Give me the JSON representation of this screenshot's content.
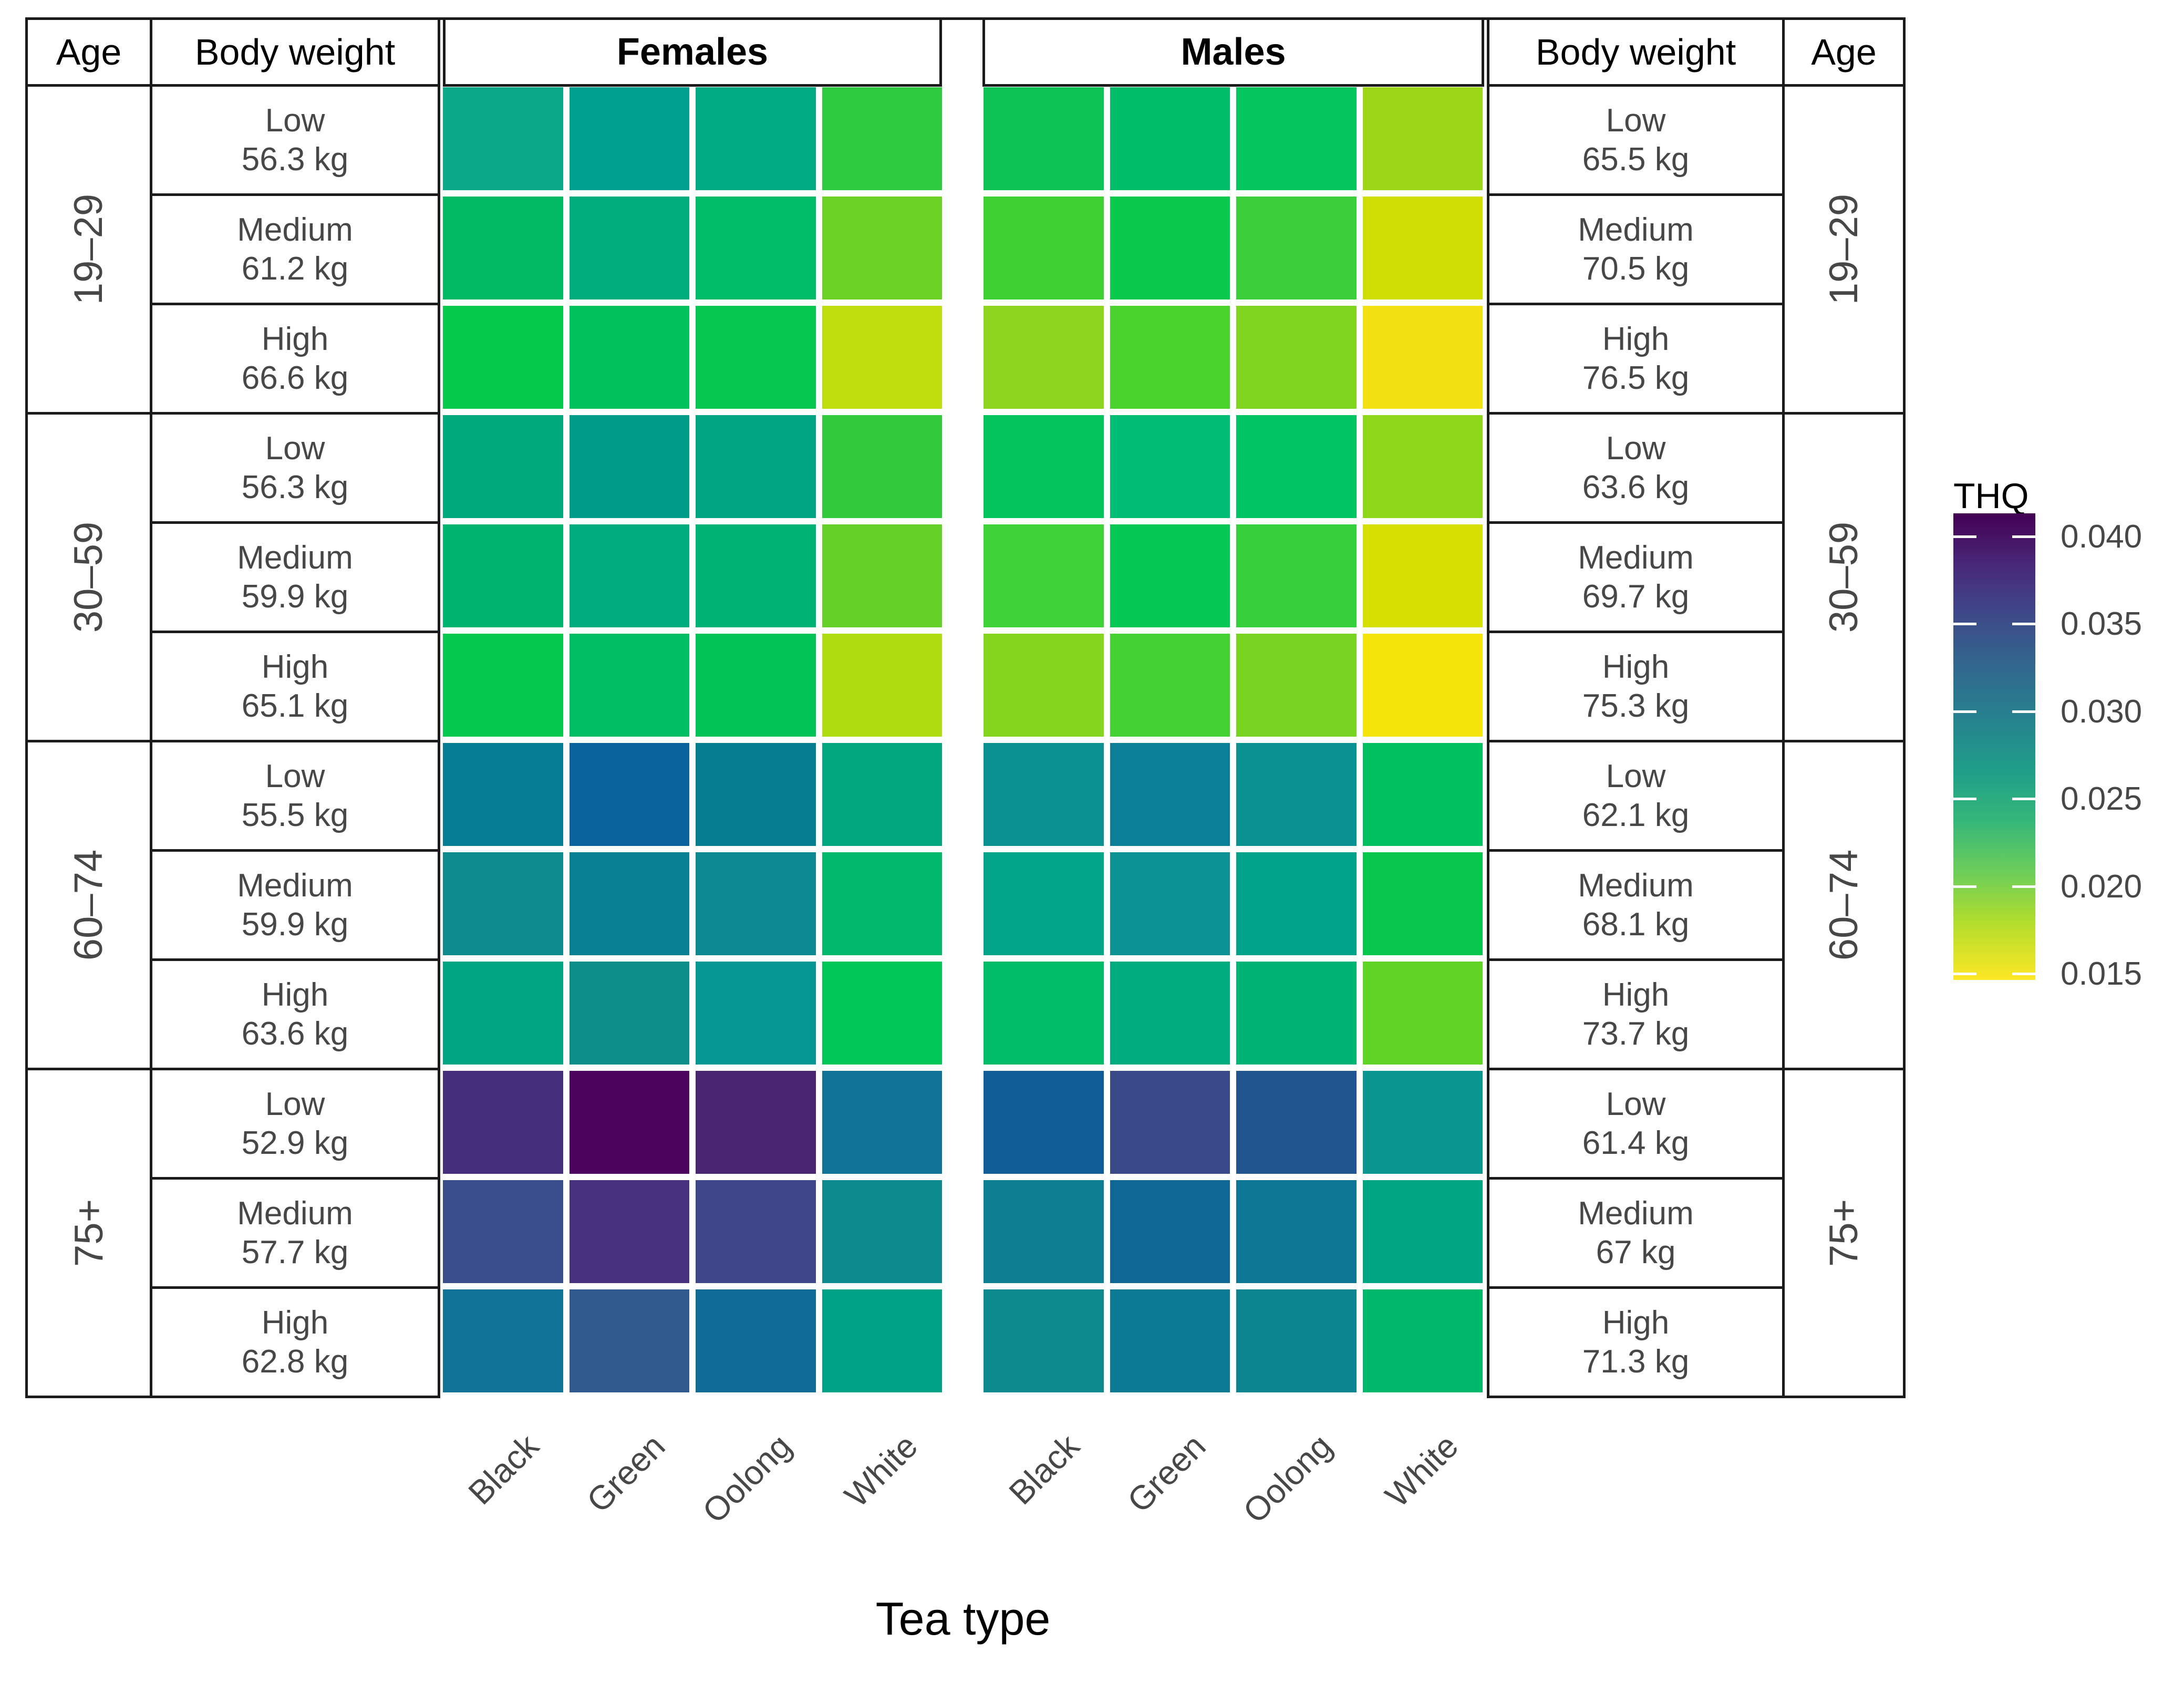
{
  "table": {
    "age_header": "Age",
    "weight_header": "Body weight",
    "female_header": "Females",
    "male_header": "Males"
  },
  "axis": {
    "x_title": "Tea type",
    "tick_labels": [
      "Black",
      "Green",
      "Oolong",
      "White"
    ]
  },
  "legend": {
    "title": "THQ",
    "tick_labels": [
      "0.040",
      "0.035",
      "0.030",
      "0.025",
      "0.020",
      "0.015"
    ]
  },
  "chart_data": {
    "type": "heatmap",
    "value_label": "THQ",
    "x_title": "Tea type",
    "columns": [
      "Black",
      "Green",
      "Oolong",
      "White"
    ],
    "facets": [
      "Females",
      "Males"
    ],
    "colormap": "viridis reversed (high THQ = dark purple, low THQ = yellow)",
    "color_domain": [
      0.0145,
      0.0415
    ],
    "legend_ticks": [
      0.04,
      0.035,
      0.03,
      0.025,
      0.02,
      0.015
    ],
    "age_groups": [
      "19–29",
      "30–59",
      "60–74",
      "75+"
    ],
    "rows": [
      {
        "age": "19–29",
        "level": "Low",
        "female_weight": "56.3 kg",
        "male_weight": "65.5 kg",
        "female": [
          0.026,
          0.028,
          0.026,
          0.022
        ],
        "male": [
          0.022,
          0.023,
          0.022,
          0.018
        ],
        "female_colors": [
          "#0aa988",
          "#00a090",
          "#00ab84",
          "#2fcb41"
        ],
        "male_colors": [
          "#0bc455",
          "#00bd69",
          "#04c65c",
          "#9bd717"
        ]
      },
      {
        "age": "19–29",
        "level": "Medium",
        "female_weight": "61.2 kg",
        "male_weight": "70.5 kg",
        "female": [
          0.024,
          0.025,
          0.023,
          0.019
        ],
        "male": [
          0.021,
          0.022,
          0.021,
          0.016
        ],
        "female_colors": [
          "#00bb64",
          "#00ad7c",
          "#00bc68",
          "#6cd125"
        ],
        "male_colors": [
          "#3fd133",
          "#0aca4e",
          "#3bd03a",
          "#cfdf04"
        ]
      },
      {
        "age": "19–29",
        "level": "High",
        "female_weight": "66.6 kg",
        "male_weight": "76.5 kg",
        "female": [
          0.022,
          0.023,
          0.022,
          0.017
        ],
        "male": [
          0.018,
          0.021,
          0.019,
          0.015
        ],
        "female_colors": [
          "#04c94b",
          "#00c25d",
          "#06c750",
          "#bddd0d"
        ],
        "male_colors": [
          "#8dd51c",
          "#4ad32c",
          "#7ed41f",
          "#f2e213"
        ]
      },
      {
        "age": "30–59",
        "level": "Low",
        "female_weight": "56.3 kg",
        "male_weight": "63.6 kg",
        "female": [
          0.026,
          0.028,
          0.026,
          0.022
        ],
        "male": [
          0.022,
          0.024,
          0.023,
          0.018
        ],
        "female_colors": [
          "#00a97b",
          "#009e8a",
          "#00a682",
          "#32cb3e"
        ],
        "male_colors": [
          "#01c45d",
          "#00bd74",
          "#00c364",
          "#8ed71b"
        ]
      },
      {
        "age": "30–59",
        "level": "Medium",
        "female_weight": "59.9 kg",
        "male_weight": "69.7 kg",
        "female": [
          0.025,
          0.026,
          0.025,
          0.02
        ],
        "male": [
          0.021,
          0.022,
          0.021,
          0.016
        ],
        "female_colors": [
          "#00b56f",
          "#00ac7d",
          "#00b573",
          "#65d028"
        ],
        "male_colors": [
          "#3ed237",
          "#04c853",
          "#36d03d",
          "#d5e002"
        ]
      },
      {
        "age": "30–59",
        "level": "High",
        "female_weight": "65.1 kg",
        "male_weight": "75.3 kg",
        "female": [
          0.022,
          0.023,
          0.022,
          0.018
        ],
        "male": [
          0.019,
          0.021,
          0.019,
          0.014
        ],
        "female_colors": [
          "#05c84f",
          "#00bd62",
          "#02c356",
          "#afdc11"
        ],
        "male_colors": [
          "#84d51e",
          "#43d231",
          "#77d422",
          "#f4e409"
        ]
      },
      {
        "age": "60–74",
        "level": "Low",
        "female_weight": "55.5 kg",
        "male_weight": "62.1 kg",
        "female": [
          0.033,
          0.035,
          0.033,
          0.026
        ],
        "male": [
          0.029,
          0.031,
          0.029,
          0.023
        ],
        "female_colors": [
          "#067d92",
          "#09629b",
          "#077d92",
          "#00a77f"
        ],
        "male_colors": [
          "#0b9290",
          "#0c8099",
          "#0a9191",
          "#00c060"
        ]
      },
      {
        "age": "60–74",
        "level": "Medium",
        "female_weight": "59.9 kg",
        "male_weight": "68.1 kg",
        "female": [
          0.03,
          0.032,
          0.03,
          0.024
        ],
        "male": [
          0.027,
          0.029,
          0.027,
          0.022
        ],
        "female_colors": [
          "#0d8b8d",
          "#0a8094",
          "#0c8890",
          "#00b96b"
        ],
        "male_colors": [
          "#00a687",
          "#0a9294",
          "#00a38a",
          "#08c74c"
        ]
      },
      {
        "age": "60–74",
        "level": "High",
        "female_weight": "63.6 kg",
        "male_weight": "73.7 kg",
        "female": [
          0.027,
          0.029,
          0.028,
          0.022
        ],
        "male": [
          0.024,
          0.026,
          0.025,
          0.02
        ],
        "female_colors": [
          "#00a584",
          "#0c8f8a",
          "#079894",
          "#00c557"
        ],
        "male_colors": [
          "#00bb67",
          "#00ac7d",
          "#00b573",
          "#60d327"
        ]
      },
      {
        "age": "75+",
        "level": "Low",
        "female_weight": "52.9 kg",
        "male_weight": "61.4 kg",
        "female": [
          0.039,
          0.042,
          0.04,
          0.034
        ],
        "male": [
          0.035,
          0.036,
          0.035,
          0.029
        ],
        "female_colors": [
          "#452f7b",
          "#4a045e",
          "#482471",
          "#0f7395"
        ],
        "male_colors": [
          "#115d97",
          "#3a4988",
          "#20558f",
          "#0a9590"
        ]
      },
      {
        "age": "75+",
        "level": "Medium",
        "female_weight": "57.7 kg",
        "male_weight": "67 kg",
        "female": [
          0.036,
          0.039,
          0.037,
          0.03
        ],
        "male": [
          0.032,
          0.034,
          0.033,
          0.027
        ],
        "female_colors": [
          "#3a4e8b",
          "#46327f",
          "#3f4788",
          "#0d8a8d"
        ],
        "male_colors": [
          "#0d7f93",
          "#0f6796",
          "#0d7895",
          "#00a584"
        ]
      },
      {
        "age": "75+",
        "level": "High",
        "female_weight": "62.8 kg",
        "male_weight": "71.3 kg",
        "female": [
          0.034,
          0.036,
          0.034,
          0.027
        ],
        "male": [
          0.03,
          0.033,
          0.03,
          0.024
        ],
        "female_colors": [
          "#0f7296",
          "#315a8e",
          "#116c98",
          "#00a285"
        ],
        "male_colors": [
          "#0c8a8e",
          "#0d7a95",
          "#0c8591",
          "#00b86b"
        ]
      }
    ]
  }
}
